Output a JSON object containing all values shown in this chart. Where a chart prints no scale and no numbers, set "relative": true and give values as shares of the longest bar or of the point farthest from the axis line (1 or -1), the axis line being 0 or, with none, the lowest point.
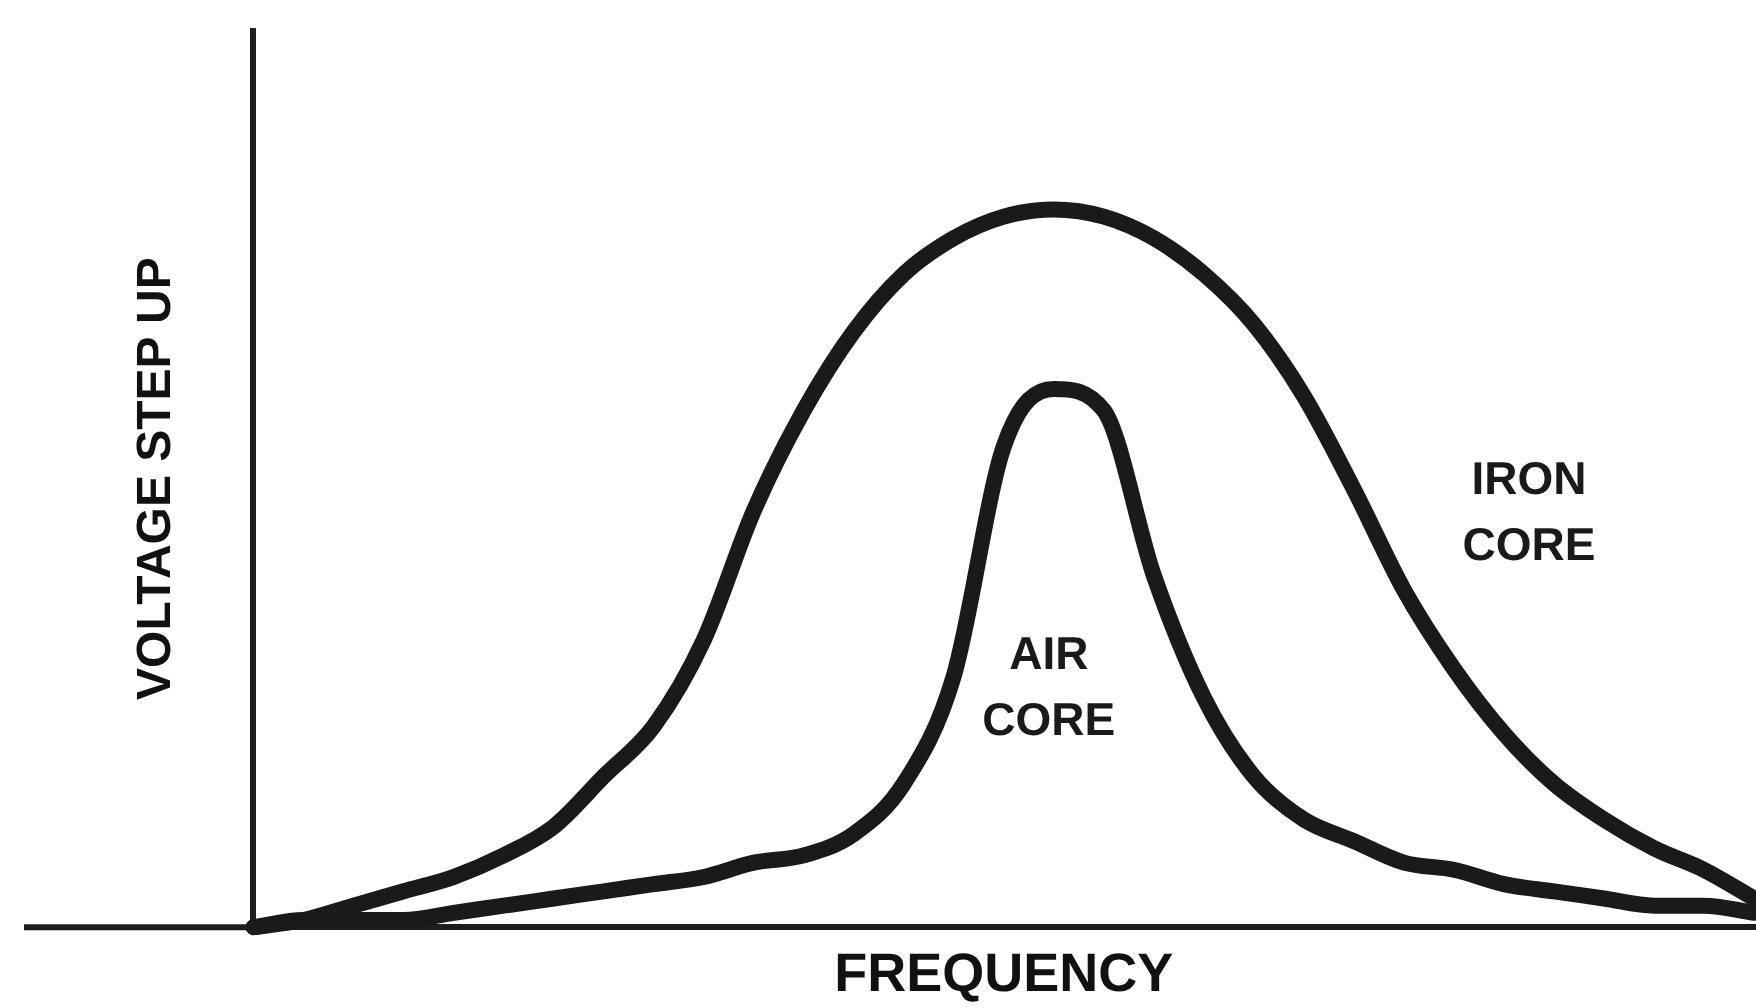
{
  "chart_data": {
    "type": "line",
    "xlabel": "FREQUENCY",
    "ylabel": "VOLTAGE STEP UP",
    "relative": true,
    "categories": [
      null,
      null,
      null,
      null,
      null,
      null,
      null,
      null,
      null,
      null,
      null,
      null,
      null,
      null,
      null,
      null,
      null,
      null,
      null,
      null,
      null,
      null,
      null,
      null,
      null,
      null,
      null,
      null,
      null,
      null,
      null
    ],
    "series": [
      {
        "name": "IRON CORE",
        "color": "#1a1a1a",
        "values": [
          0,
          0.01,
          0.03,
          0.05,
          0.07,
          0.1,
          0.14,
          0.21,
          0.28,
          0.4,
          0.58,
          0.72,
          0.83,
          0.91,
          0.96,
          0.99,
          1,
          0.99,
          0.96,
          0.91,
          0.84,
          0.74,
          0.61,
          0.47,
          0.36,
          0.27,
          0.2,
          0.15,
          0.11,
          0.08,
          0.04
        ]
      },
      {
        "name": "AIR CORE",
        "color": "#1a1a1a",
        "values": [
          0,
          0.01,
          0.01,
          0.01,
          0.02,
          0.03,
          0.04,
          0.05,
          0.06,
          0.07,
          0.09,
          0.1,
          0.13,
          0.2,
          0.35,
          0.67,
          0.75,
          0.72,
          0.49,
          0.32,
          0.21,
          0.15,
          0.12,
          0.09,
          0.08,
          0.06,
          0.05,
          0.04,
          0.03,
          0.03,
          0.02
        ]
      }
    ]
  }
}
